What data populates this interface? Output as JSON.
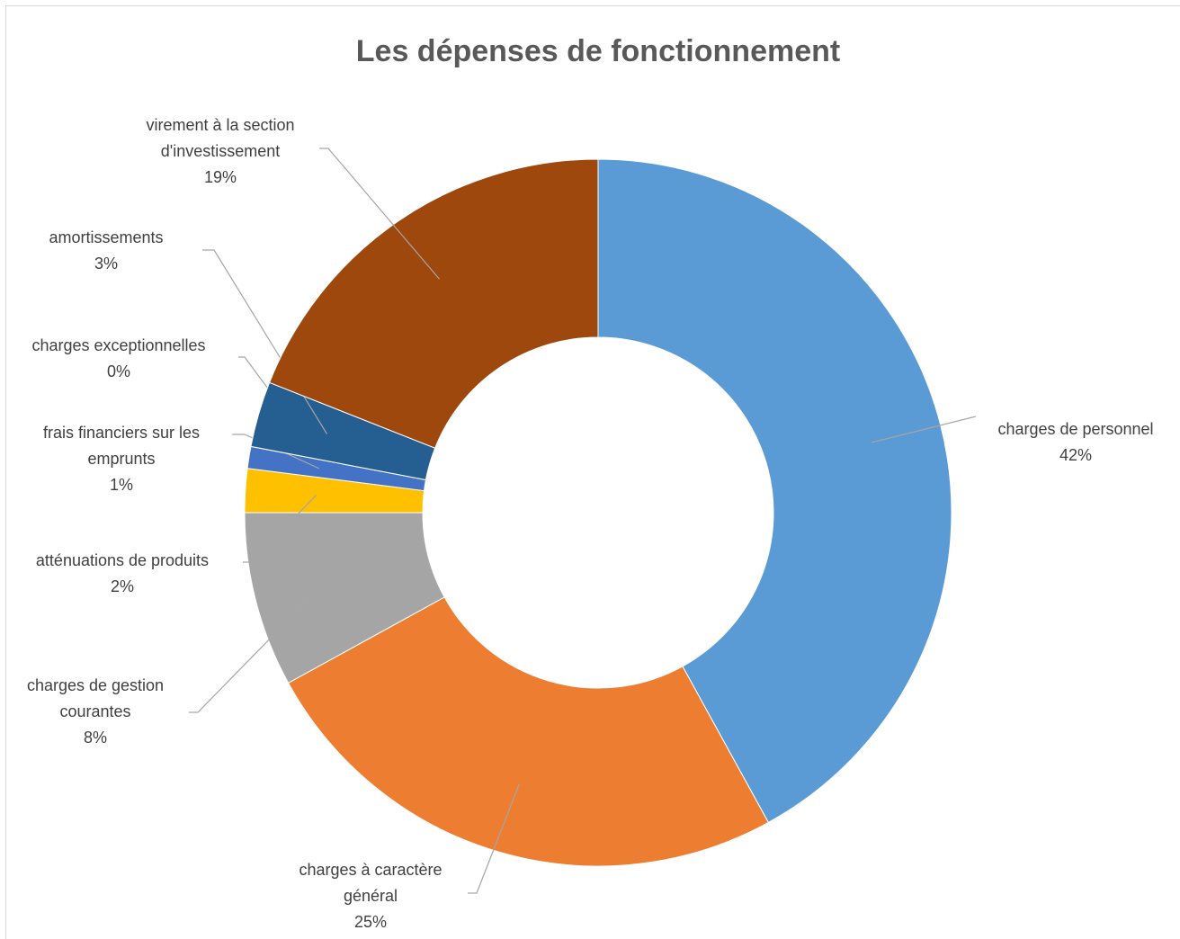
{
  "chart_data": {
    "type": "donut",
    "title": "Les dépenses de fonctionnement",
    "categories": [
      "charges de personnel",
      "charges à caractère général",
      "charges de gestion courantes",
      "atténuations de produits",
      "frais financiers sur les emprunts",
      "charges exceptionnelles",
      "amortissements",
      "virement à la section d'investissement"
    ],
    "values": [
      42,
      25,
      8,
      2,
      1,
      0,
      3,
      19
    ],
    "value_labels": [
      "42%",
      "25%",
      "8%",
      "2%",
      "1%",
      "0%",
      "3%",
      "19%"
    ],
    "colors": [
      "#5b9bd5",
      "#ed7d31",
      "#a5a5a5",
      "#ffc000",
      "#4472c4",
      "#264478",
      "#255e91",
      "#9e480e"
    ]
  }
}
